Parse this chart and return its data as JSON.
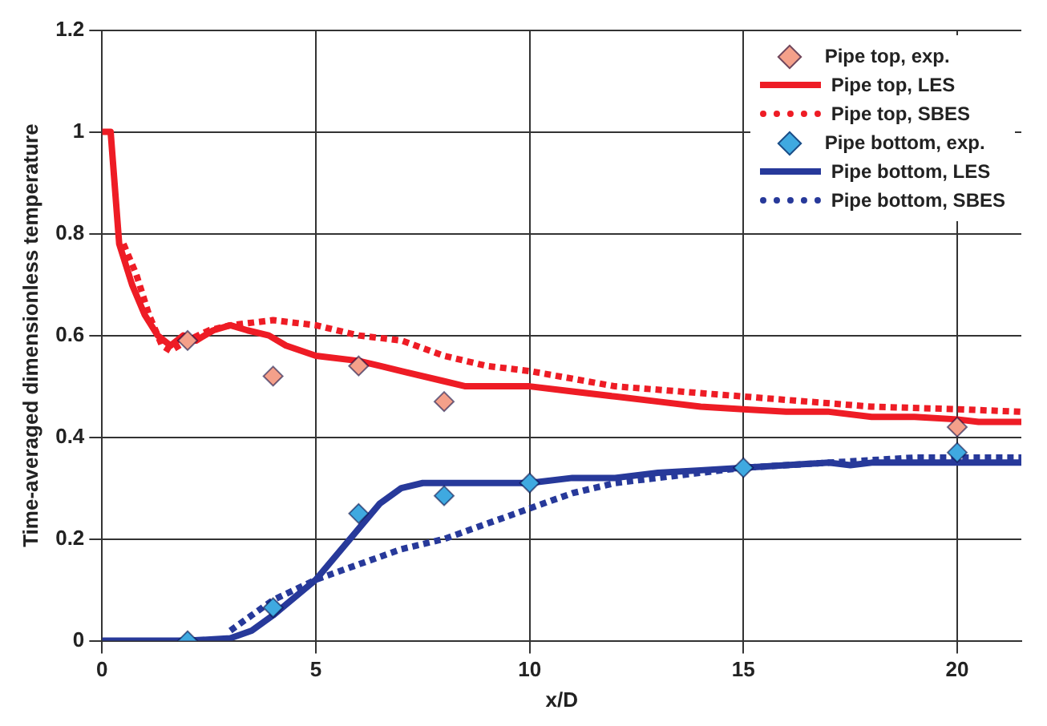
{
  "chart_data": {
    "type": "line",
    "xlabel": "x/D",
    "ylabel": "Time-averaged dimensionless temperature",
    "xlim": [
      0,
      21.5
    ],
    "xticks": [
      0,
      5,
      10,
      15,
      20
    ],
    "ylim": [
      0,
      1.2
    ],
    "yticks": [
      0,
      0.2,
      0.4,
      0.6,
      0.8,
      1,
      1.2
    ],
    "grid": true,
    "legend": "top right",
    "series": [
      {
        "name": "Pipe top, exp.",
        "type": "scatter",
        "marker": "diamond",
        "color": "#f4a08a",
        "x": [
          2,
          4,
          6,
          8,
          20
        ],
        "values": [
          0.59,
          0.52,
          0.54,
          0.47,
          0.42
        ]
      },
      {
        "name": "Pipe top, LES",
        "line_style": "solid",
        "color": "#ee1c25",
        "x": [
          0,
          0.2,
          0.4,
          0.7,
          1.0,
          1.3,
          1.6,
          1.9,
          2.2,
          2.6,
          3.0,
          3.4,
          3.9,
          4.3,
          5.0,
          6.0,
          6.5,
          7.0,
          8.0,
          8.5,
          10,
          11,
          12,
          13,
          14,
          15,
          16,
          17,
          18,
          19,
          20,
          20.5,
          21.5
        ],
        "values": [
          1,
          1,
          0.78,
          0.7,
          0.64,
          0.6,
          0.58,
          0.6,
          0.59,
          0.61,
          0.62,
          0.61,
          0.6,
          0.58,
          0.56,
          0.55,
          0.54,
          0.53,
          0.51,
          0.5,
          0.5,
          0.49,
          0.48,
          0.47,
          0.46,
          0.455,
          0.45,
          0.45,
          0.44,
          0.44,
          0.435,
          0.43,
          0.43
        ]
      },
      {
        "name": "Pipe top, SBES",
        "line_style": "dotted",
        "color": "#ee1c25",
        "x": [
          0.5,
          0.8,
          1.1,
          1.4,
          1.6,
          2,
          2.5,
          3,
          4,
          5,
          6,
          7,
          8,
          9,
          10,
          12,
          15,
          18,
          20,
          21.5
        ],
        "values": [
          0.78,
          0.72,
          0.64,
          0.58,
          0.57,
          0.59,
          0.61,
          0.62,
          0.63,
          0.62,
          0.6,
          0.59,
          0.56,
          0.54,
          0.53,
          0.5,
          0.48,
          0.46,
          0.455,
          0.45
        ]
      },
      {
        "name": "Pipe bottom, exp.",
        "type": "scatter",
        "marker": "diamond",
        "color": "#3fa9e0",
        "x": [
          2,
          4,
          6,
          8,
          10,
          15,
          20
        ],
        "values": [
          0,
          0.065,
          0.25,
          0.285,
          0.31,
          0.34,
          0.37
        ]
      },
      {
        "name": "Pipe bottom, LES",
        "line_style": "solid",
        "color": "#27399a",
        "x": [
          0,
          2,
          3,
          3.5,
          4,
          5,
          6,
          6.5,
          7,
          7.5,
          8,
          9,
          10,
          11,
          12,
          13,
          14,
          15,
          16,
          17,
          17.5,
          18,
          20,
          21.5
        ],
        "values": [
          0,
          0,
          0.005,
          0.02,
          0.05,
          0.12,
          0.22,
          0.27,
          0.3,
          0.31,
          0.31,
          0.31,
          0.31,
          0.32,
          0.32,
          0.33,
          0.335,
          0.34,
          0.345,
          0.35,
          0.345,
          0.35,
          0.35,
          0.35
        ]
      },
      {
        "name": "Pipe bottom, SBES",
        "line_style": "dotted",
        "color": "#27399a",
        "x": [
          3,
          3.5,
          4,
          5,
          6,
          7,
          8,
          9,
          10,
          11,
          12,
          13,
          15,
          17,
          19,
          21.5
        ],
        "values": [
          0.02,
          0.05,
          0.08,
          0.12,
          0.15,
          0.18,
          0.2,
          0.23,
          0.26,
          0.29,
          0.31,
          0.32,
          0.34,
          0.35,
          0.36,
          0.36
        ]
      }
    ]
  }
}
